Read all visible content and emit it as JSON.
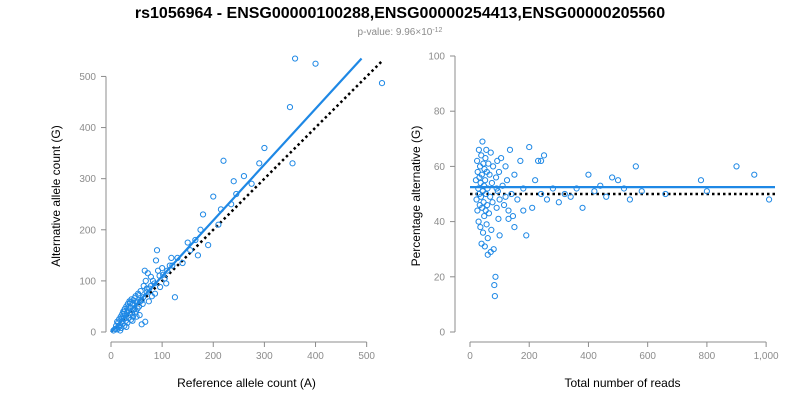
{
  "figure": {
    "title": "rs1056964 - ENSG00000100288,ENSG00000254413,ENSG00000205560",
    "subtitle_prefix": "p-value: 9.96×10",
    "subtitle_exponent": "-12"
  },
  "colors": {
    "points": "#1e88e5",
    "fit_line": "#1e88e5",
    "reference_line": "#000000",
    "axes": "#8c8c8c"
  },
  "chart_data": [
    {
      "type": "scatter",
      "xlabel": "Reference allele count (A)",
      "ylabel": "Alternative allele count (G)",
      "xlim": [
        0,
        530
      ],
      "ylim": [
        0,
        540
      ],
      "xticks": [
        0,
        100,
        200,
        300,
        400,
        500
      ],
      "yticks": [
        0,
        100,
        200,
        300,
        400,
        500
      ],
      "grid": false,
      "fit_line": {
        "style": "solid",
        "x": [
          0,
          490
        ],
        "y": [
          0,
          535
        ]
      },
      "reference_line": {
        "style": "dotted",
        "x": [
          0,
          530
        ],
        "y": [
          0,
          530
        ]
      },
      "points": [
        [
          5,
          3
        ],
        [
          8,
          6
        ],
        [
          10,
          12
        ],
        [
          12,
          5
        ],
        [
          14,
          18
        ],
        [
          15,
          9
        ],
        [
          16,
          25
        ],
        [
          18,
          14
        ],
        [
          19,
          30
        ],
        [
          20,
          8
        ],
        [
          21,
          20
        ],
        [
          22,
          35
        ],
        [
          23,
          16
        ],
        [
          24,
          40
        ],
        [
          25,
          27
        ],
        [
          26,
          12
        ],
        [
          27,
          45
        ],
        [
          28,
          32
        ],
        [
          29,
          22
        ],
        [
          30,
          50
        ],
        [
          31,
          38
        ],
        [
          32,
          18
        ],
        [
          33,
          55
        ],
        [
          34,
          42
        ],
        [
          35,
          28
        ],
        [
          36,
          60
        ],
        [
          37,
          34
        ],
        [
          38,
          48
        ],
        [
          39,
          24
        ],
        [
          40,
          64
        ],
        [
          41,
          38
        ],
        [
          42,
          56
        ],
        [
          43,
          30
        ],
        [
          44,
          62
        ],
        [
          45,
          44
        ],
        [
          46,
          52
        ],
        [
          47,
          36
        ],
        [
          48,
          70
        ],
        [
          49,
          40
        ],
        [
          50,
          58
        ],
        [
          52,
          46
        ],
        [
          54,
          72
        ],
        [
          55,
          50
        ],
        [
          56,
          33
        ],
        [
          58,
          80
        ],
        [
          60,
          62
        ],
        [
          62,
          55
        ],
        [
          64,
          90
        ],
        [
          66,
          120
        ],
        [
          68,
          100
        ],
        [
          70,
          78
        ],
        [
          72,
          115
        ],
        [
          75,
          85
        ],
        [
          78,
          108
        ],
        [
          80,
          70
        ],
        [
          85,
          95
        ],
        [
          88,
          140
        ],
        [
          90,
          160
        ],
        [
          95,
          110
        ],
        [
          100,
          125
        ],
        [
          105,
          105
        ],
        [
          110,
          120
        ],
        [
          120,
          130
        ],
        [
          125,
          68
        ],
        [
          130,
          145
        ],
        [
          140,
          135
        ],
        [
          155,
          160
        ],
        [
          165,
          180
        ],
        [
          170,
          150
        ],
        [
          180,
          230
        ],
        [
          190,
          170
        ],
        [
          200,
          265
        ],
        [
          210,
          210
        ],
        [
          220,
          335
        ],
        [
          235,
          250
        ],
        [
          245,
          270
        ],
        [
          260,
          305
        ],
        [
          275,
          290
        ],
        [
          300,
          360
        ],
        [
          350,
          440
        ],
        [
          360,
          535
        ],
        [
          400,
          525
        ],
        [
          530,
          487
        ],
        [
          12,
          20
        ],
        [
          18,
          3
        ],
        [
          22,
          28
        ],
        [
          26,
          40
        ],
        [
          30,
          10
        ],
        [
          34,
          48
        ],
        [
          38,
          58
        ],
        [
          42,
          22
        ],
        [
          46,
          66
        ],
        [
          50,
          30
        ],
        [
          53,
          75
        ],
        [
          57,
          60
        ],
        [
          60,
          15
        ],
        [
          63,
          68
        ],
        [
          67,
          20
        ],
        [
          70,
          85
        ],
        [
          74,
          60
        ],
        [
          78,
          90
        ],
        [
          82,
          100
        ],
        [
          86,
          75
        ],
        [
          92,
          120
        ],
        [
          96,
          88
        ],
        [
          102,
          112
        ],
        [
          108,
          95
        ],
        [
          115,
          130
        ],
        [
          118,
          145
        ],
        [
          150,
          175
        ],
        [
          175,
          200
        ],
        [
          215,
          240
        ],
        [
          240,
          295
        ],
        [
          290,
          330
        ],
        [
          355,
          330
        ]
      ]
    },
    {
      "type": "scatter",
      "xlabel": "Total number of reads",
      "ylabel": "Percentage alternative (G)",
      "xlim": [
        0,
        1030
      ],
      "ylim": [
        0,
        100
      ],
      "xticks": [
        0,
        200,
        400,
        600,
        800,
        1000
      ],
      "xtick_labels": [
        "0",
        "200",
        "400",
        "600",
        "800",
        "1,000"
      ],
      "yticks": [
        0,
        20,
        40,
        60,
        80,
        100
      ],
      "grid": false,
      "fit_line": {
        "style": "solid",
        "y": 52.5
      },
      "reference_line": {
        "style": "dotted",
        "y": 50
      },
      "points": [
        [
          20,
          55
        ],
        [
          22,
          48
        ],
        [
          24,
          62
        ],
        [
          25,
          44
        ],
        [
          26,
          58
        ],
        [
          28,
          52
        ],
        [
          29,
          40
        ],
        [
          30,
          66
        ],
        [
          31,
          50
        ],
        [
          32,
          56
        ],
        [
          33,
          46
        ],
        [
          34,
          60
        ],
        [
          35,
          38
        ],
        [
          36,
          54
        ],
        [
          37,
          49
        ],
        [
          38,
          64
        ],
        [
          39,
          32
        ],
        [
          40,
          57
        ],
        [
          41,
          45
        ],
        [
          42,
          69
        ],
        [
          43,
          51
        ],
        [
          44,
          36
        ],
        [
          45,
          61
        ],
        [
          46,
          47
        ],
        [
          47,
          53
        ],
        [
          48,
          42
        ],
        [
          49,
          59
        ],
        [
          50,
          31
        ],
        [
          51,
          55
        ],
        [
          52,
          63
        ],
        [
          53,
          44
        ],
        [
          54,
          50
        ],
        [
          55,
          66
        ],
        [
          56,
          39
        ],
        [
          57,
          58
        ],
        [
          58,
          46
        ],
        [
          59,
          52
        ],
        [
          60,
          28
        ],
        [
          62,
          61
        ],
        [
          64,
          43
        ],
        [
          66,
          57
        ],
        [
          68,
          49
        ],
        [
          70,
          65
        ],
        [
          72,
          37
        ],
        [
          74,
          54
        ],
        [
          76,
          47
        ],
        [
          78,
          60
        ],
        [
          80,
          30
        ],
        [
          82,
          17
        ],
        [
          84,
          13
        ],
        [
          86,
          20
        ],
        [
          88,
          56
        ],
        [
          90,
          45
        ],
        [
          92,
          62
        ],
        [
          94,
          51
        ],
        [
          96,
          41
        ],
        [
          98,
          58
        ],
        [
          100,
          48
        ],
        [
          105,
          63
        ],
        [
          110,
          53
        ],
        [
          115,
          46
        ],
        [
          120,
          60
        ],
        [
          125,
          55
        ],
        [
          130,
          44
        ],
        [
          135,
          66
        ],
        [
          140,
          50
        ],
        [
          145,
          42
        ],
        [
          150,
          57
        ],
        [
          160,
          48
        ],
        [
          170,
          62
        ],
        [
          180,
          52
        ],
        [
          190,
          35
        ],
        [
          200,
          67
        ],
        [
          210,
          45
        ],
        [
          220,
          55
        ],
        [
          230,
          62
        ],
        [
          240,
          50
        ],
        [
          250,
          64
        ],
        [
          260,
          48
        ],
        [
          280,
          52
        ],
        [
          300,
          47
        ],
        [
          320,
          50
        ],
        [
          340,
          49
        ],
        [
          360,
          52
        ],
        [
          380,
          45
        ],
        [
          400,
          57
        ],
        [
          420,
          51
        ],
        [
          440,
          53
        ],
        [
          460,
          49
        ],
        [
          480,
          56
        ],
        [
          500,
          55
        ],
        [
          520,
          52
        ],
        [
          540,
          48
        ],
        [
          560,
          60
        ],
        [
          580,
          51
        ],
        [
          660,
          50
        ],
        [
          780,
          55
        ],
        [
          800,
          51
        ],
        [
          900,
          60
        ],
        [
          960,
          57
        ],
        [
          1010,
          48
        ],
        [
          60,
          34
        ],
        [
          70,
          29
        ],
        [
          130,
          41
        ],
        [
          150,
          38
        ],
        [
          100,
          35
        ],
        [
          180,
          44
        ],
        [
          240,
          62
        ],
        [
          90,
          52
        ],
        [
          120,
          49
        ]
      ]
    }
  ]
}
